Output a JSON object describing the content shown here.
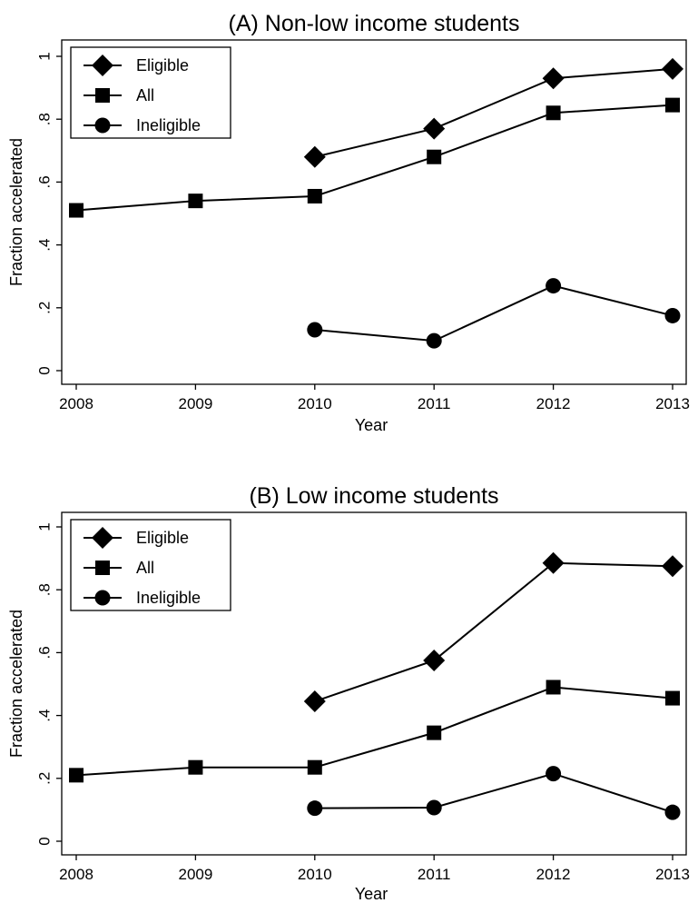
{
  "chart_data": [
    {
      "type": "line",
      "title": "(A) Non-low income students",
      "xlabel": "Year",
      "ylabel": "Fraction accelerated",
      "x": [
        2008,
        2009,
        2010,
        2011,
        2012,
        2013
      ],
      "xlim": [
        2008,
        2013
      ],
      "ylim": [
        0,
        1
      ],
      "yticks": [
        0,
        0.2,
        0.4,
        0.6,
        0.8,
        1
      ],
      "ytick_labels": [
        "0",
        ".2",
        ".4",
        ".6",
        ".8",
        "1"
      ],
      "xtick_labels": [
        "2008",
        "2009",
        "2010",
        "2011",
        "2012",
        "2013"
      ],
      "grid": false,
      "legend_position": "top-left",
      "series": [
        {
          "name": "Eligible",
          "marker": "diamond",
          "x": [
            2010,
            2011,
            2012,
            2013
          ],
          "values": [
            0.68,
            0.77,
            0.93,
            0.96
          ]
        },
        {
          "name": "All",
          "marker": "square",
          "x": [
            2008,
            2009,
            2010,
            2011,
            2012,
            2013
          ],
          "values": [
            0.51,
            0.54,
            0.555,
            0.68,
            0.82,
            0.845
          ]
        },
        {
          "name": "Ineligible",
          "marker": "circle",
          "x": [
            2010,
            2011,
            2012,
            2013
          ],
          "values": [
            0.13,
            0.095,
            0.27,
            0.175
          ]
        }
      ]
    },
    {
      "type": "line",
      "title": "(B) Low income students",
      "xlabel": "Year",
      "ylabel": "Fraction accelerated",
      "x": [
        2008,
        2009,
        2010,
        2011,
        2012,
        2013
      ],
      "xlim": [
        2008,
        2013
      ],
      "ylim": [
        0,
        1
      ],
      "yticks": [
        0,
        0.2,
        0.4,
        0.6,
        0.8,
        1
      ],
      "ytick_labels": [
        "0",
        ".2",
        ".4",
        ".6",
        ".8",
        "1"
      ],
      "xtick_labels": [
        "2008",
        "2009",
        "2010",
        "2011",
        "2012",
        "2013"
      ],
      "grid": false,
      "legend_position": "top-left",
      "series": [
        {
          "name": "Eligible",
          "marker": "diamond",
          "x": [
            2010,
            2011,
            2012,
            2013
          ],
          "values": [
            0.445,
            0.575,
            0.885,
            0.875
          ]
        },
        {
          "name": "All",
          "marker": "square",
          "x": [
            2008,
            2009,
            2010,
            2011,
            2012,
            2013
          ],
          "values": [
            0.21,
            0.235,
            0.235,
            0.345,
            0.49,
            0.455
          ]
        },
        {
          "name": "Ineligible",
          "marker": "circle",
          "x": [
            2010,
            2011,
            2012,
            2013
          ],
          "values": [
            0.105,
            0.107,
            0.215,
            0.092
          ]
        }
      ]
    }
  ]
}
